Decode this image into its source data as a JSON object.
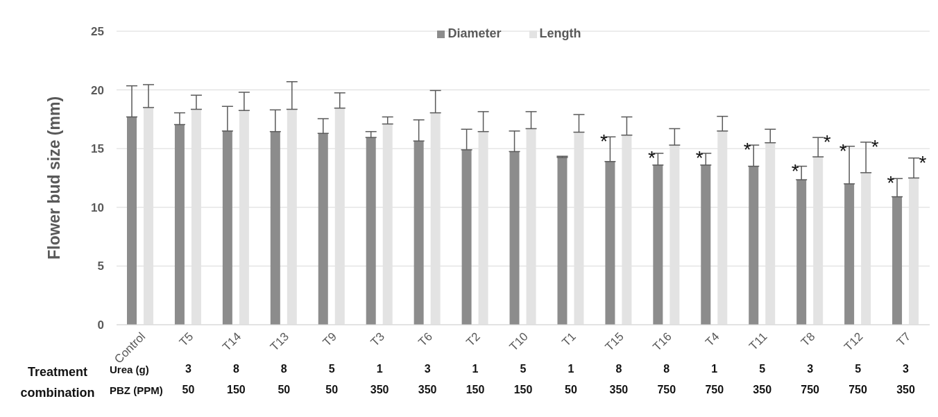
{
  "chart_data": {
    "type": "bar",
    "ylabel": "Flower bud size (mm)",
    "categories": [
      "Control",
      "T5",
      "T14",
      "T13",
      "T9",
      "T3",
      "T6",
      "T2",
      "T10",
      "T1",
      "T15",
      "T16",
      "T4",
      "T11",
      "T8",
      "T12",
      "T7"
    ],
    "series": [
      {
        "name": "Diameter",
        "color": "#8c8c8c",
        "values": [
          17.7,
          17.05,
          16.5,
          16.45,
          16.3,
          15.95,
          15.65,
          14.9,
          14.75,
          14.25,
          13.9,
          13.6,
          13.6,
          13.5,
          12.35,
          12.0,
          10.9
        ],
        "errors": [
          [
            17.7,
            20.35
          ],
          [
            17.05,
            18.05
          ],
          [
            16.5,
            18.6
          ],
          [
            16.45,
            18.3
          ],
          [
            16.3,
            17.55
          ],
          [
            15.95,
            16.45
          ],
          [
            15.65,
            17.45
          ],
          [
            14.9,
            16.65
          ],
          [
            14.75,
            16.5
          ],
          [
            14.25,
            14.35
          ],
          [
            13.9,
            16.0
          ],
          [
            13.6,
            14.6
          ],
          [
            13.6,
            14.6
          ],
          [
            13.5,
            15.3
          ],
          [
            12.35,
            13.5
          ],
          [
            12.0,
            15.2
          ],
          [
            10.9,
            12.45
          ]
        ],
        "value_labels": [
          null,
          null,
          null,
          null,
          null,
          null,
          null,
          null,
          null,
          null,
          "*",
          "*",
          "*",
          "*",
          "*",
          "*",
          "*"
        ]
      },
      {
        "name": "Length",
        "color": "#e3e3e3",
        "values": [
          18.5,
          18.35,
          18.25,
          18.35,
          18.45,
          17.1,
          18.05,
          16.45,
          16.7,
          16.4,
          16.15,
          15.3,
          16.5,
          15.5,
          14.3,
          12.95,
          12.5
        ],
        "errors": [
          [
            18.5,
            20.45
          ],
          [
            18.35,
            19.55
          ],
          [
            18.25,
            19.8
          ],
          [
            18.35,
            20.7
          ],
          [
            18.45,
            19.75
          ],
          [
            17.1,
            17.7
          ],
          [
            18.05,
            19.95
          ],
          [
            16.45,
            18.15
          ],
          [
            16.7,
            18.15
          ],
          [
            16.4,
            17.9
          ],
          [
            16.15,
            17.7
          ],
          [
            15.3,
            16.7
          ],
          [
            16.5,
            17.75
          ],
          [
            15.5,
            16.65
          ],
          [
            14.3,
            15.95
          ],
          [
            12.95,
            15.55
          ],
          [
            12.5,
            14.2
          ]
        ],
        "value_labels": [
          null,
          null,
          null,
          null,
          null,
          null,
          null,
          null,
          null,
          null,
          null,
          null,
          null,
          null,
          "*",
          "*",
          "*"
        ]
      }
    ],
    "ylim": [
      0,
      25
    ],
    "yticks": [
      0,
      5,
      10,
      15,
      20,
      25
    ],
    "grid": "y",
    "legend": "top",
    "annotations": [
      "Treatment combination",
      "Urea (g)",
      "PBZ (PPM)",
      "3",
      "8",
      "8",
      "5",
      "1",
      "3",
      "1",
      "5",
      "1",
      "8",
      "8",
      "1",
      "5",
      "3",
      "5",
      "3",
      "50",
      "150",
      "50",
      "50",
      "350",
      "350",
      "150",
      "150",
      "50",
      "350",
      "750",
      "750",
      "350",
      "750",
      "750",
      "350"
    ]
  }
}
